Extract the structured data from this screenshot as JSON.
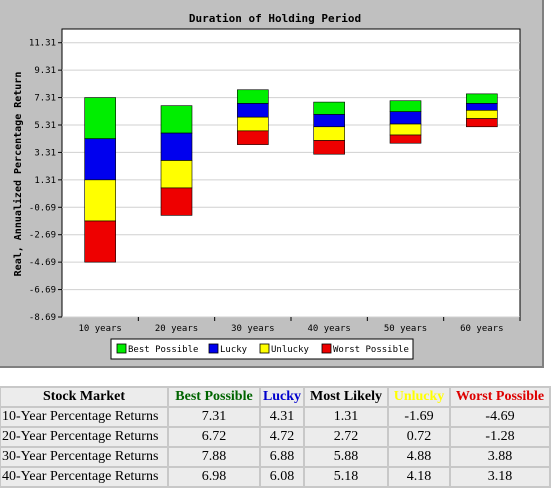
{
  "chart_data": {
    "type": "bar",
    "title": "Duration of Holding Period",
    "ylabel": "Real, Annualized Percentage Return",
    "xlabel": "",
    "ylim": [
      -8.69,
      12.31
    ],
    "yticks": [
      "11.31",
      "9.31",
      "7.31",
      "5.31",
      "3.31",
      "1.31",
      "-0.69",
      "-2.69",
      "-4.69",
      "-6.69",
      "-8.69"
    ],
    "categories": [
      "10 years",
      "20 years",
      "30 years",
      "40 years",
      "50 years",
      "60 years"
    ],
    "series": [
      {
        "name": "Best Possible",
        "color": "#00ee00",
        "low": [
          4.31,
          4.72,
          6.88,
          6.08,
          6.28,
          6.88
        ],
        "high": [
          7.31,
          6.72,
          7.88,
          6.98,
          7.08,
          7.58
        ]
      },
      {
        "name": "Lucky",
        "color": "#0000ee",
        "low": [
          1.31,
          2.72,
          5.88,
          5.18,
          5.38,
          6.38
        ],
        "high": [
          4.31,
          4.72,
          6.88,
          6.08,
          6.28,
          6.88
        ]
      },
      {
        "name": "Unlucky",
        "color": "#ffff00",
        "low": [
          -1.69,
          0.72,
          4.88,
          4.18,
          4.58,
          5.78
        ],
        "high": [
          1.31,
          2.72,
          5.88,
          5.18,
          5.38,
          6.38
        ]
      },
      {
        "name": "Worst Possible",
        "color": "#ee0000",
        "low": [
          -4.69,
          -1.28,
          3.88,
          3.18,
          3.98,
          5.18
        ],
        "high": [
          -1.69,
          0.72,
          4.88,
          4.18,
          4.58,
          5.78
        ]
      }
    ],
    "legend_position": "bottom",
    "grid": true
  },
  "table": {
    "headers": [
      {
        "label": "Stock Market",
        "color": "#000000"
      },
      {
        "label": "Best Possible",
        "color": "#006400"
      },
      {
        "label": "Lucky",
        "color": "#0000cc"
      },
      {
        "label": "Most Likely",
        "color": "#000000"
      },
      {
        "label": "Unlucky",
        "color": "#ffff00"
      },
      {
        "label": "Worst Possible",
        "color": "#dd0000"
      }
    ],
    "rows": [
      [
        "10-Year Percentage Returns",
        "7.31",
        "4.31",
        "1.31",
        "-1.69",
        "-4.69"
      ],
      [
        "20-Year Percentage Returns",
        "6.72",
        "4.72",
        "2.72",
        "0.72",
        "-1.28"
      ],
      [
        "30-Year Percentage Returns",
        "7.88",
        "6.88",
        "5.88",
        "4.88",
        "3.88"
      ],
      [
        "40-Year Percentage Returns",
        "6.98",
        "6.08",
        "5.18",
        "4.18",
        "3.18"
      ]
    ]
  }
}
